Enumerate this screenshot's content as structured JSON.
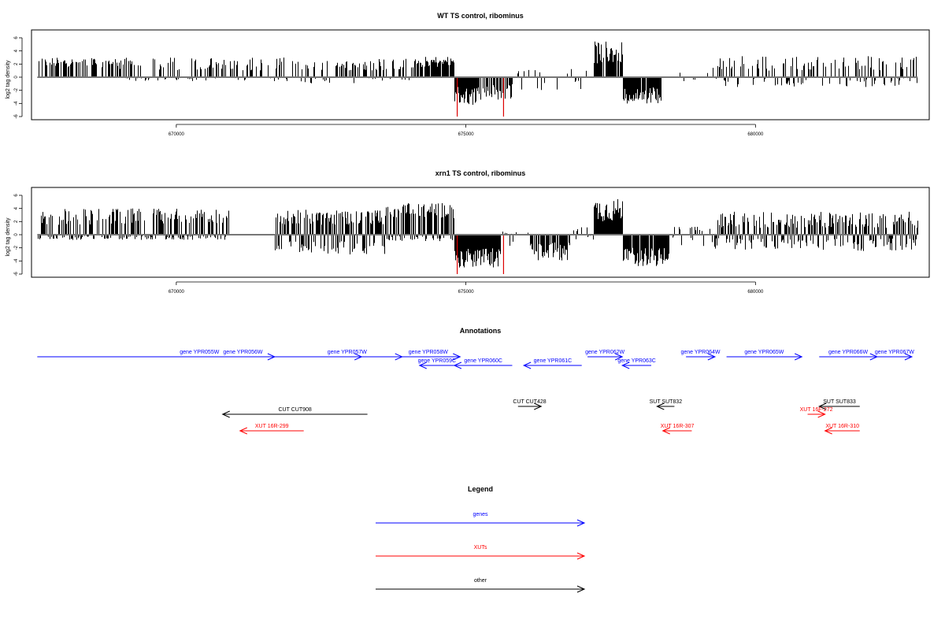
{
  "chart_data": [
    {
      "type": "bar",
      "title": "WT TS control, ribominus",
      "ylabel": "log2 tag density",
      "xlabel": "",
      "xlim": [
        667500,
        683000
      ],
      "ylim": [
        -6,
        6
      ],
      "x_ticks": [
        670000,
        675000,
        680000
      ],
      "y_ticks": [
        6,
        4,
        2,
        0,
        -2,
        -4,
        -6
      ],
      "grid": false,
      "baseline": 0,
      "x_range": [
        667600,
        682800
      ],
      "colors": {
        "positive": "#000000",
        "negative": "#000000",
        "highlight": "#dd0000"
      },
      "highlights": [
        {
          "x": 674850,
          "value": -6
        },
        {
          "x": 675650,
          "value": -6
        }
      ],
      "profile": [
        {
          "x": [
            667600,
            669000
          ],
          "pos": [
            1.5,
            3.0
          ],
          "neg": [
            0,
            0
          ],
          "density": 0.55
        },
        {
          "x": [
            669000,
            672000
          ],
          "pos": [
            1.0,
            3.0
          ],
          "neg": [
            0,
            0.6
          ],
          "density": 0.55
        },
        {
          "x": [
            672000,
            673200
          ],
          "pos": [
            1.0,
            2.5
          ],
          "neg": [
            0,
            1.0
          ],
          "density": 0.5
        },
        {
          "x": [
            673200,
            674100
          ],
          "pos": [
            1.0,
            2.8
          ],
          "neg": [
            0,
            0.6
          ],
          "density": 0.6
        },
        {
          "x": [
            674100,
            674800
          ],
          "pos": [
            1.5,
            3.2
          ],
          "neg": [
            0,
            0
          ],
          "density": 0.9
        },
        {
          "x": [
            674800,
            675200
          ],
          "pos": [
            0,
            0
          ],
          "neg": [
            1.5,
            4.3
          ],
          "density": 0.95
        },
        {
          "x": [
            675200,
            675800
          ],
          "pos": [
            0,
            0
          ],
          "neg": [
            1.0,
            3.5
          ],
          "density": 0.7
        },
        {
          "x": [
            675800,
            677200
          ],
          "pos": [
            0.5,
            1.5
          ],
          "neg": [
            0.5,
            2.0
          ],
          "density": 0.12
        },
        {
          "x": [
            677200,
            677700
          ],
          "pos": [
            2.0,
            5.5
          ],
          "neg": [
            0,
            0
          ],
          "density": 0.95
        },
        {
          "x": [
            677700,
            678400
          ],
          "pos": [
            0,
            0
          ],
          "neg": [
            1.5,
            4.0
          ],
          "density": 0.9
        },
        {
          "x": [
            678400,
            679300
          ],
          "pos": [
            0.5,
            1.5
          ],
          "neg": [
            0,
            1.0
          ],
          "density": 0.15
        },
        {
          "x": [
            679300,
            682800
          ],
          "pos": [
            1.0,
            3.2
          ],
          "neg": [
            0,
            1.5
          ],
          "density": 0.5
        }
      ]
    },
    {
      "type": "bar",
      "title": "xrn1 TS control, ribominus",
      "ylabel": "log2 tag density",
      "xlabel": "",
      "xlim": [
        667500,
        683000
      ],
      "ylim": [
        -6,
        6
      ],
      "x_ticks": [
        670000,
        675000,
        680000
      ],
      "y_ticks": [
        6,
        4,
        2,
        0,
        -2,
        -4,
        -6
      ],
      "grid": false,
      "baseline": 0,
      "x_range": [
        667600,
        682800
      ],
      "colors": {
        "positive": "#000000",
        "negative": "#000000",
        "highlight": "#dd0000"
      },
      "highlights": [
        {
          "x": 674850,
          "value": -6
        },
        {
          "x": 675650,
          "value": -6
        }
      ],
      "profile": [
        {
          "x": [
            667600,
            670900
          ],
          "pos": [
            1.5,
            4.0
          ],
          "neg": [
            0,
            0.8
          ],
          "density": 0.95
        },
        {
          "x": [
            670900,
            671700
          ],
          "pos": [
            0,
            0
          ],
          "neg": [
            0,
            0
          ],
          "density": 0.0
        },
        {
          "x": [
            671700,
            673600
          ],
          "pos": [
            1.5,
            3.8
          ],
          "neg": [
            1.0,
            3.0
          ],
          "density": 0.95
        },
        {
          "x": [
            673600,
            674800
          ],
          "pos": [
            2.5,
            4.8
          ],
          "neg": [
            0,
            1.0
          ],
          "density": 1.0
        },
        {
          "x": [
            674800,
            675600
          ],
          "pos": [
            0,
            0
          ],
          "neg": [
            2.0,
            5.0
          ],
          "density": 1.0
        },
        {
          "x": [
            675600,
            676100
          ],
          "pos": [
            0,
            0.5
          ],
          "neg": [
            0.5,
            2.0
          ],
          "density": 0.4
        },
        {
          "x": [
            676100,
            676800
          ],
          "pos": [
            0,
            0
          ],
          "neg": [
            1.0,
            4.0
          ],
          "density": 0.9
        },
        {
          "x": [
            676800,
            677200
          ],
          "pos": [
            0.5,
            1.5
          ],
          "neg": [
            0,
            1.0
          ],
          "density": 0.3
        },
        {
          "x": [
            677200,
            677700
          ],
          "pos": [
            2.0,
            5.5
          ],
          "neg": [
            0,
            0
          ],
          "density": 0.95
        },
        {
          "x": [
            677700,
            678500
          ],
          "pos": [
            0,
            0
          ],
          "neg": [
            2.0,
            4.8
          ],
          "density": 0.95
        },
        {
          "x": [
            678500,
            679300
          ],
          "pos": [
            0.5,
            1.5
          ],
          "neg": [
            0,
            2.0
          ],
          "density": 0.4
        },
        {
          "x": [
            679300,
            682800
          ],
          "pos": [
            1.0,
            3.5
          ],
          "neg": [
            0.5,
            2.5
          ],
          "density": 0.85
        }
      ]
    }
  ],
  "annotations": {
    "title": "Annotations",
    "features": [
      {
        "label": "gene YPR055W",
        "type": "genes",
        "start": 667600,
        "end": 673200,
        "strand": "+",
        "row": 1
      },
      {
        "label": "gene YPR056W",
        "type": "genes",
        "start": 670600,
        "end": 671700,
        "strand": "+",
        "row": 1
      },
      {
        "label": "gene YPR057W",
        "type": "genes",
        "start": 672000,
        "end": 673900,
        "strand": "+",
        "row": 1
      },
      {
        "label": "gene YPR058W",
        "type": "genes",
        "start": 673800,
        "end": 674900,
        "strand": "+",
        "row": 1
      },
      {
        "label": "gene YPR059C",
        "type": "genes",
        "start": 674200,
        "end": 674800,
        "strand": "-",
        "row": 2
      },
      {
        "label": "gene YPR060C",
        "type": "genes",
        "start": 674800,
        "end": 675800,
        "strand": "-",
        "row": 2
      },
      {
        "label": "gene YPR061C",
        "type": "genes",
        "start": 676000,
        "end": 677000,
        "strand": "-",
        "row": 2
      },
      {
        "label": "gene YPR062W",
        "type": "genes",
        "start": 677100,
        "end": 677700,
        "strand": "+",
        "row": 1
      },
      {
        "label": "gene YPR063C",
        "type": "genes",
        "start": 677700,
        "end": 678200,
        "strand": "-",
        "row": 2
      },
      {
        "label": "gene YPR064W",
        "type": "genes",
        "start": 678800,
        "end": 679300,
        "strand": "+",
        "row": 1
      },
      {
        "label": "gene YPR065W",
        "type": "genes",
        "start": 679500,
        "end": 680800,
        "strand": "+",
        "row": 1
      },
      {
        "label": "gene YPR066W",
        "type": "genes",
        "start": 681100,
        "end": 682100,
        "strand": "+",
        "row": 1
      },
      {
        "label": "gene YPR067W",
        "type": "genes",
        "start": 682100,
        "end": 682700,
        "strand": "+",
        "row": 1
      },
      {
        "label": "CUT CUT908",
        "type": "other",
        "start": 670800,
        "end": 673300,
        "strand": "-",
        "row": 4
      },
      {
        "label": "CUT CUT428",
        "type": "other",
        "start": 675900,
        "end": 676300,
        "strand": "+",
        "row": 3
      },
      {
        "label": "SUT SUT832",
        "type": "other",
        "start": 678300,
        "end": 678600,
        "strand": "-",
        "row": 3
      },
      {
        "label": "SUT SUT833",
        "type": "other",
        "start": 681100,
        "end": 681800,
        "strand": "-",
        "row": 3
      },
      {
        "label": "XUT 16R-299",
        "type": "XUTs",
        "start": 671100,
        "end": 672200,
        "strand": "-",
        "row": 5
      },
      {
        "label": "XUT 16R-307",
        "type": "XUTs",
        "start": 678400,
        "end": 678900,
        "strand": "-",
        "row": 5
      },
      {
        "label": "XUT 16F-272",
        "type": "XUTs",
        "start": 680900,
        "end": 681200,
        "strand": "+",
        "row": 4
      },
      {
        "label": "XUT 16R-310",
        "type": "XUTs",
        "start": 681200,
        "end": 681800,
        "strand": "-",
        "row": 5
      }
    ]
  },
  "legend": {
    "title": "Legend",
    "items": [
      {
        "label": "genes",
        "color": "#0000ff"
      },
      {
        "label": "XUTs",
        "color": "#ff0000"
      },
      {
        "label": "other",
        "color": "#000000"
      }
    ]
  },
  "colors": {
    "genes": "#0000ff",
    "XUTs": "#ff0000",
    "other": "#000000"
  }
}
